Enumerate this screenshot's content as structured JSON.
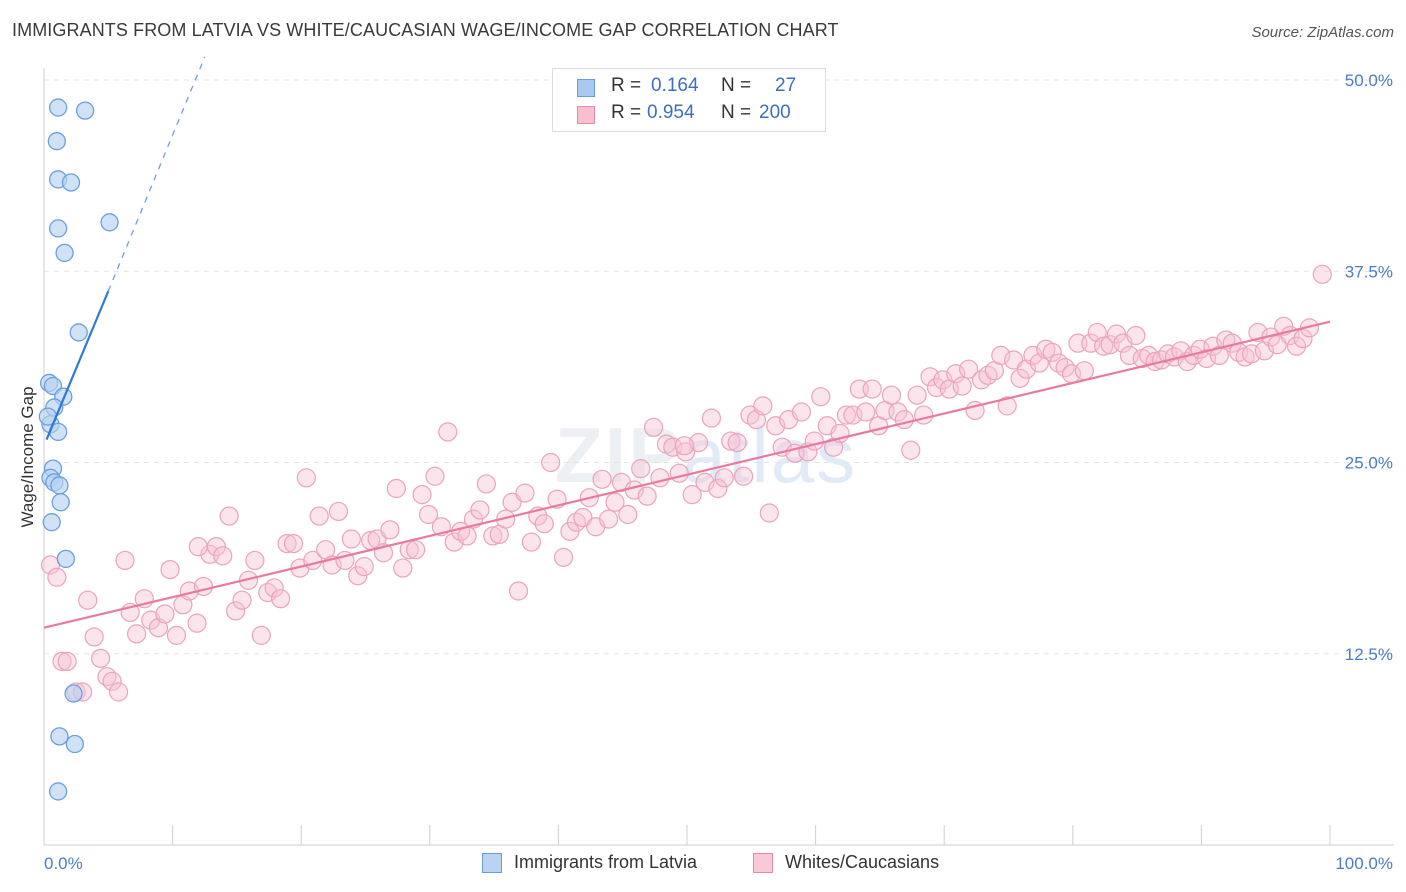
{
  "header": {
    "title": "IMMIGRANTS FROM LATVIA VS WHITE/CAUCASIAN WAGE/INCOME GAP CORRELATION CHART",
    "source": "Source: ZipAtlas.com"
  },
  "correlation_box": {
    "rows": [
      {
        "r_label": "R =",
        "r_value": "0.164",
        "n_label": "N =",
        "n_value": "27",
        "color": "#a8c8ef",
        "border": "#6a9be0"
      },
      {
        "r_label": "R =",
        "r_value": "0.954",
        "n_label": "N =",
        "n_value": "200",
        "color": "#f7bfd0",
        "border": "#e68aa8"
      }
    ]
  },
  "legend": {
    "items": [
      {
        "label": "Immigrants from Latvia",
        "color": "#b9d3f2",
        "border": "#6a9be0"
      },
      {
        "label": "Whites/Caucasians",
        "color": "#f9c9d7",
        "border": "#e68aa8"
      }
    ]
  },
  "watermark": {
    "zip": "ZIP",
    "atlas": "atlas"
  },
  "chart_data": {
    "type": "scatter",
    "title": "IMMIGRANTS FROM LATVIA VS WHITE/CAUCASIAN WAGE/INCOME GAP CORRELATION CHART",
    "xlabel": "",
    "ylabel": "Wage/Income Gap",
    "xlim": [
      0,
      100
    ],
    "ylim": [
      0,
      50
    ],
    "x_tick_labels": [
      "0.0%",
      "100.0%"
    ],
    "y_ticks": [
      12.5,
      25.0,
      37.5,
      50.0
    ],
    "y_tick_labels": [
      "12.5%",
      "25.0%",
      "37.5%",
      "50.0%"
    ],
    "colors": {
      "blue": "#4a88d9",
      "pink": "#e87aa0",
      "blue_fill": "#b9d3f2",
      "pink_fill": "#f9c9d7"
    },
    "series": [
      {
        "name": "Immigrants from Latvia",
        "trend": {
          "x0": 0.2,
          "y0": 26.5,
          "x1": 5,
          "y1": 36.2,
          "dash_x1": 12.5,
          "dash_y1": 51.5
        },
        "points": [
          [
            1.1,
            48.2
          ],
          [
            3.2,
            48.0
          ],
          [
            1.0,
            46.0
          ],
          [
            1.1,
            43.5
          ],
          [
            2.1,
            43.3
          ],
          [
            5.1,
            40.7
          ],
          [
            1.1,
            40.3
          ],
          [
            1.6,
            38.7
          ],
          [
            2.7,
            33.5
          ],
          [
            0.4,
            30.2
          ],
          [
            0.7,
            30.0
          ],
          [
            1.5,
            29.3
          ],
          [
            0.8,
            28.6
          ],
          [
            0.5,
            27.5
          ],
          [
            1.1,
            27.0
          ],
          [
            0.7,
            24.6
          ],
          [
            0.5,
            24.0
          ],
          [
            0.8,
            23.7
          ],
          [
            1.2,
            23.5
          ],
          [
            1.3,
            22.4
          ],
          [
            0.6,
            21.1
          ],
          [
            1.7,
            18.7
          ],
          [
            2.3,
            9.9
          ],
          [
            1.2,
            7.1
          ],
          [
            2.4,
            6.6
          ],
          [
            1.1,
            3.5
          ],
          [
            0.3,
            28.0
          ]
        ]
      },
      {
        "name": "Whites/Caucasians",
        "trend": {
          "x0": 0,
          "y0": 14.2,
          "x1": 100,
          "y1": 34.2
        },
        "points": [
          [
            0.5,
            18.3
          ],
          [
            1.0,
            17.5
          ],
          [
            1.4,
            12.0
          ],
          [
            1.8,
            12.0
          ],
          [
            2.5,
            10.0
          ],
          [
            3.0,
            10.0
          ],
          [
            3.4,
            16.0
          ],
          [
            3.9,
            13.6
          ],
          [
            4.4,
            12.2
          ],
          [
            4.9,
            11.0
          ],
          [
            5.3,
            10.7
          ],
          [
            5.8,
            10.0
          ],
          [
            6.3,
            18.6
          ],
          [
            6.7,
            15.2
          ],
          [
            7.2,
            13.8
          ],
          [
            7.8,
            16.1
          ],
          [
            8.3,
            14.7
          ],
          [
            8.9,
            14.2
          ],
          [
            9.4,
            15.1
          ],
          [
            9.8,
            18.0
          ],
          [
            10.3,
            13.7
          ],
          [
            10.8,
            15.7
          ],
          [
            11.3,
            16.6
          ],
          [
            11.9,
            14.5
          ],
          [
            12.4,
            16.9
          ],
          [
            12.9,
            19.0
          ],
          [
            13.4,
            19.5
          ],
          [
            13.9,
            18.9
          ],
          [
            14.4,
            21.5
          ],
          [
            14.9,
            15.3
          ],
          [
            15.4,
            16.0
          ],
          [
            15.9,
            17.3
          ],
          [
            16.4,
            18.6
          ],
          [
            16.9,
            13.7
          ],
          [
            17.4,
            16.5
          ],
          [
            17.9,
            16.8
          ],
          [
            18.4,
            16.1
          ],
          [
            18.9,
            19.7
          ],
          [
            19.4,
            19.7
          ],
          [
            19.9,
            18.1
          ],
          [
            20.4,
            24.0
          ],
          [
            20.9,
            18.6
          ],
          [
            21.4,
            21.5
          ],
          [
            21.9,
            19.3
          ],
          [
            22.4,
            18.3
          ],
          [
            22.9,
            21.8
          ],
          [
            23.4,
            18.6
          ],
          [
            23.9,
            20.0
          ],
          [
            24.4,
            17.6
          ],
          [
            24.9,
            18.2
          ],
          [
            25.4,
            19.9
          ],
          [
            25.9,
            20.0
          ],
          [
            26.4,
            19.1
          ],
          [
            26.9,
            20.6
          ],
          [
            27.4,
            23.3
          ],
          [
            27.9,
            18.1
          ],
          [
            28.4,
            19.3
          ],
          [
            28.9,
            19.3
          ],
          [
            29.4,
            22.9
          ],
          [
            29.9,
            21.6
          ],
          [
            30.4,
            24.1
          ],
          [
            30.9,
            20.8
          ],
          [
            31.4,
            27.0
          ],
          [
            31.9,
            19.8
          ],
          [
            32.4,
            20.5
          ],
          [
            32.9,
            20.2
          ],
          [
            33.4,
            21.3
          ],
          [
            33.9,
            21.9
          ],
          [
            34.4,
            23.6
          ],
          [
            34.9,
            20.2
          ],
          [
            35.4,
            20.3
          ],
          [
            35.9,
            21.3
          ],
          [
            36.4,
            22.4
          ],
          [
            36.9,
            16.6
          ],
          [
            37.4,
            23.0
          ],
          [
            37.9,
            19.8
          ],
          [
            38.4,
            21.5
          ],
          [
            38.9,
            21.0
          ],
          [
            39.4,
            25.0
          ],
          [
            39.9,
            22.6
          ],
          [
            40.4,
            18.8
          ],
          [
            40.9,
            20.5
          ],
          [
            41.4,
            21.1
          ],
          [
            41.9,
            21.4
          ],
          [
            42.4,
            22.7
          ],
          [
            42.9,
            20.8
          ],
          [
            43.4,
            23.9
          ],
          [
            43.9,
            21.3
          ],
          [
            44.4,
            22.4
          ],
          [
            44.9,
            23.7
          ],
          [
            45.4,
            21.6
          ],
          [
            45.9,
            23.2
          ],
          [
            46.4,
            24.6
          ],
          [
            46.9,
            22.8
          ],
          [
            47.4,
            27.3
          ],
          [
            47.9,
            24.0
          ],
          [
            48.4,
            26.2
          ],
          [
            48.9,
            26.0
          ],
          [
            49.4,
            24.3
          ],
          [
            49.9,
            25.7
          ],
          [
            50.4,
            22.9
          ],
          [
            50.9,
            26.3
          ],
          [
            51.4,
            23.7
          ],
          [
            51.9,
            27.9
          ],
          [
            52.4,
            23.3
          ],
          [
            52.9,
            24.0
          ],
          [
            53.4,
            26.4
          ],
          [
            53.9,
            26.3
          ],
          [
            54.4,
            24.1
          ],
          [
            54.9,
            28.1
          ],
          [
            55.4,
            27.8
          ],
          [
            55.9,
            28.7
          ],
          [
            56.4,
            21.7
          ],
          [
            56.9,
            27.4
          ],
          [
            57.4,
            26.0
          ],
          [
            57.9,
            27.8
          ],
          [
            58.4,
            25.6
          ],
          [
            58.9,
            28.3
          ],
          [
            59.4,
            25.7
          ],
          [
            59.9,
            26.4
          ],
          [
            60.4,
            29.3
          ],
          [
            60.9,
            27.4
          ],
          [
            61.4,
            26.0
          ],
          [
            61.9,
            26.9
          ],
          [
            62.4,
            28.1
          ],
          [
            62.9,
            28.1
          ],
          [
            63.4,
            29.8
          ],
          [
            63.9,
            28.3
          ],
          [
            64.4,
            29.8
          ],
          [
            64.9,
            27.4
          ],
          [
            65.4,
            28.4
          ],
          [
            65.9,
            29.4
          ],
          [
            66.4,
            28.3
          ],
          [
            66.9,
            27.8
          ],
          [
            67.4,
            25.8
          ],
          [
            67.9,
            29.4
          ],
          [
            68.4,
            28.1
          ],
          [
            68.9,
            30.6
          ],
          [
            69.4,
            29.9
          ],
          [
            69.9,
            30.4
          ],
          [
            70.4,
            29.8
          ],
          [
            70.9,
            30.8
          ],
          [
            71.4,
            30.0
          ],
          [
            71.9,
            31.1
          ],
          [
            72.4,
            28.4
          ],
          [
            72.9,
            30.4
          ],
          [
            73.4,
            30.7
          ],
          [
            73.9,
            31.0
          ],
          [
            74.4,
            32.0
          ],
          [
            74.9,
            28.7
          ],
          [
            75.4,
            31.7
          ],
          [
            75.9,
            30.5
          ],
          [
            76.4,
            31.1
          ],
          [
            76.9,
            32.0
          ],
          [
            77.4,
            31.5
          ],
          [
            77.9,
            32.4
          ],
          [
            78.4,
            32.2
          ],
          [
            78.9,
            31.5
          ],
          [
            79.4,
            31.2
          ],
          [
            79.9,
            30.8
          ],
          [
            80.4,
            32.8
          ],
          [
            80.9,
            31.0
          ],
          [
            81.4,
            32.8
          ],
          [
            81.9,
            33.5
          ],
          [
            82.4,
            32.6
          ],
          [
            82.9,
            32.7
          ],
          [
            83.4,
            33.4
          ],
          [
            83.9,
            32.8
          ],
          [
            84.4,
            32.0
          ],
          [
            84.9,
            33.3
          ],
          [
            85.4,
            31.8
          ],
          [
            85.9,
            32.0
          ],
          [
            86.4,
            31.6
          ],
          [
            86.9,
            31.7
          ],
          [
            87.4,
            32.1
          ],
          [
            87.9,
            31.9
          ],
          [
            88.4,
            32.3
          ],
          [
            88.9,
            31.6
          ],
          [
            89.4,
            32.0
          ],
          [
            89.9,
            32.4
          ],
          [
            90.4,
            31.8
          ],
          [
            90.9,
            32.6
          ],
          [
            91.4,
            32.0
          ],
          [
            91.9,
            33.0
          ],
          [
            92.4,
            32.8
          ],
          [
            92.9,
            32.2
          ],
          [
            93.4,
            31.9
          ],
          [
            93.9,
            32.1
          ],
          [
            94.4,
            33.5
          ],
          [
            94.9,
            32.3
          ],
          [
            95.4,
            33.2
          ],
          [
            95.9,
            32.7
          ],
          [
            96.4,
            33.9
          ],
          [
            96.9,
            33.3
          ],
          [
            97.4,
            32.6
          ],
          [
            97.9,
            33.1
          ],
          [
            98.4,
            33.8
          ],
          [
            99.4,
            37.3
          ],
          [
            49.8,
            26.1
          ],
          [
            12.0,
            19.5
          ]
        ]
      }
    ]
  }
}
